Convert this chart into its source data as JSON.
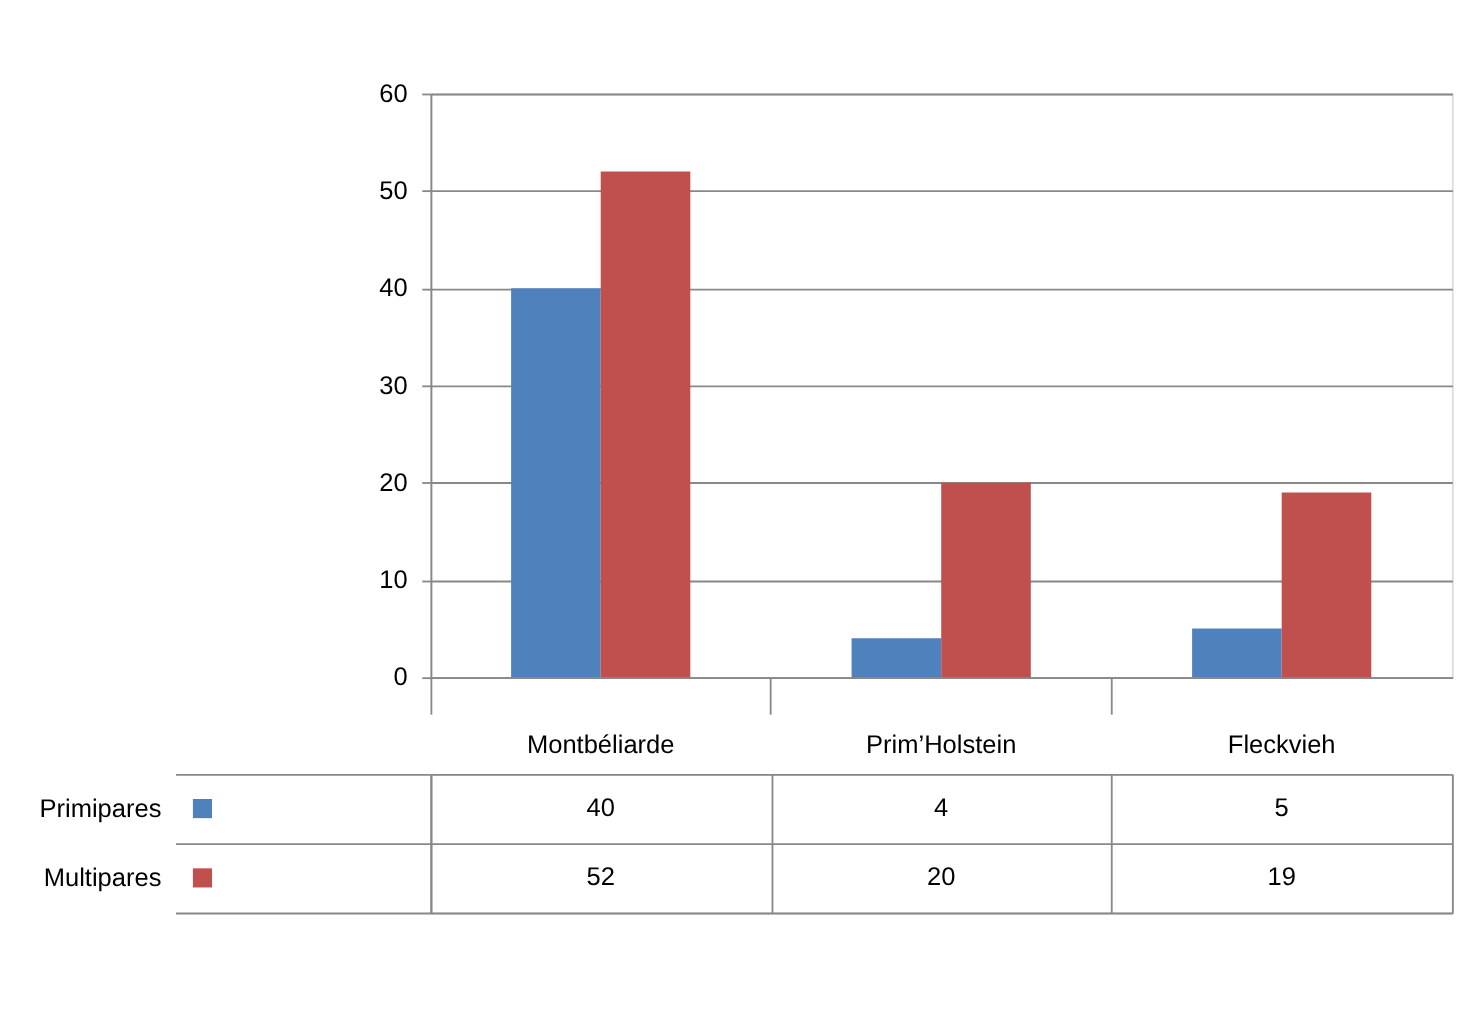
{
  "chart_data": {
    "type": "bar",
    "categories": [
      "Montbéliarde",
      "Prim’Holstein",
      "Fleckvieh"
    ],
    "series": [
      {
        "name": "Primipares",
        "color": "#4f81bd",
        "values": [
          40,
          4,
          5
        ]
      },
      {
        "name": "Multipares",
        "color": "#c0504d",
        "values": [
          52,
          20,
          19
        ]
      }
    ],
    "ylim": [
      0,
      60
    ],
    "yticks": [
      0,
      10,
      20,
      30,
      40,
      50,
      60
    ],
    "grid": "y",
    "data_labels": true,
    "legend": "bottom left"
  }
}
